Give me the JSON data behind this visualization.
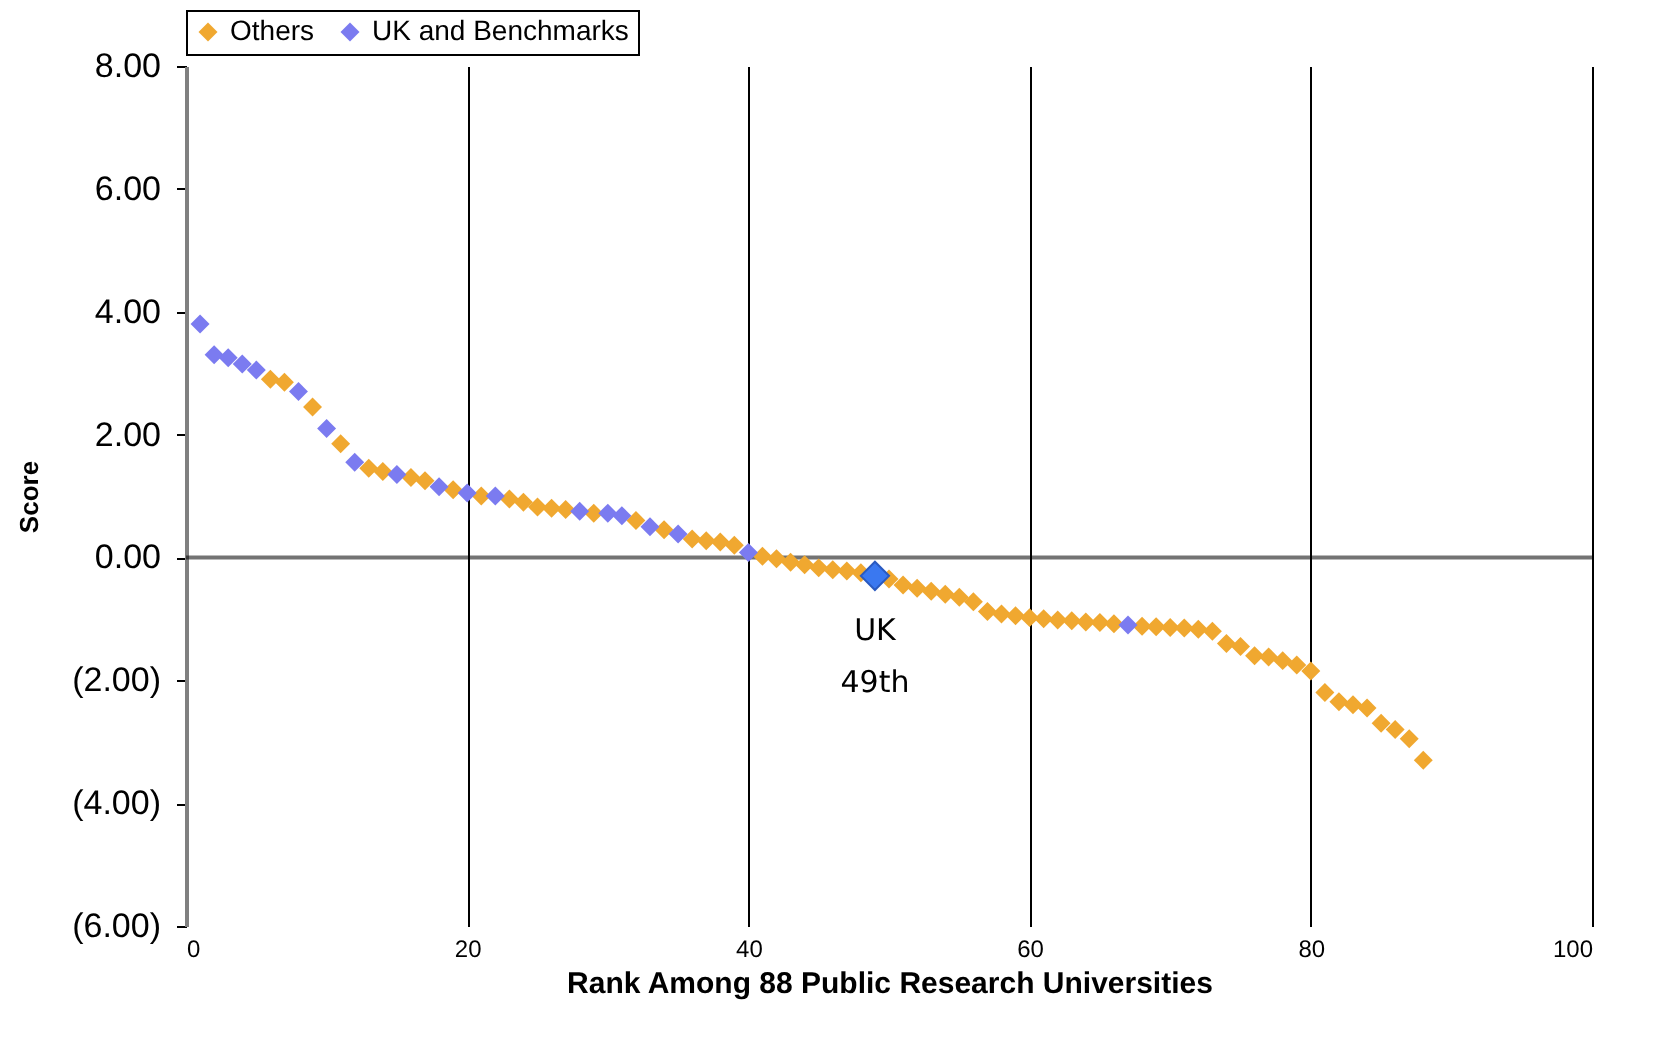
{
  "chart_data": {
    "type": "scatter",
    "xlabel": "Rank Among 88 Public Research Universities",
    "ylabel": "Score",
    "xlim": [
      0,
      100
    ],
    "xticks": [
      0,
      20,
      40,
      60,
      80,
      100
    ],
    "ylim": [
      -6,
      8
    ],
    "yticks": [
      {
        "value": -6,
        "label": "(6.00)"
      },
      {
        "value": -4,
        "label": "(4.00)"
      },
      {
        "value": -2,
        "label": "(2.00)"
      },
      {
        "value": 0,
        "label": "0.00"
      },
      {
        "value": 2,
        "label": "2.00"
      },
      {
        "value": 4,
        "label": "4.00"
      },
      {
        "value": 6,
        "label": "6.00"
      },
      {
        "value": 8,
        "label": "8.00"
      }
    ],
    "grid": "x",
    "legend": "top",
    "marker": "diamond",
    "ref_lines": [
      {
        "axis": "y",
        "value": 0
      }
    ],
    "annotations": [
      {
        "text": "UK\n49th",
        "x": 49,
        "y": -0.3
      }
    ],
    "series": [
      {
        "name": "Others",
        "color": "#f0a830",
        "x": [
          6,
          7,
          9,
          11,
          13,
          14,
          16,
          17,
          19,
          21,
          23,
          24,
          25,
          26,
          27,
          29,
          32,
          34,
          36,
          37,
          38,
          39,
          41,
          42,
          43,
          44,
          45,
          46,
          47,
          48,
          50,
          51,
          52,
          53,
          54,
          55,
          56,
          57,
          58,
          59,
          60,
          61,
          62,
          63,
          64,
          65,
          66,
          68,
          69,
          70,
          71,
          72,
          73,
          74,
          75,
          76,
          77,
          78,
          79,
          80,
          81,
          82,
          83,
          84,
          85,
          86,
          87,
          88
        ],
        "values": [
          2.9,
          2.85,
          2.45,
          1.85,
          1.45,
          1.4,
          1.3,
          1.25,
          1.1,
          1.0,
          0.95,
          0.9,
          0.82,
          0.8,
          0.78,
          0.72,
          0.6,
          0.45,
          0.3,
          0.27,
          0.25,
          0.2,
          0.02,
          -0.02,
          -0.08,
          -0.12,
          -0.17,
          -0.2,
          -0.22,
          -0.25,
          -0.35,
          -0.45,
          -0.5,
          -0.55,
          -0.6,
          -0.65,
          -0.72,
          -0.88,
          -0.92,
          -0.95,
          -0.98,
          -1.0,
          -1.02,
          -1.03,
          -1.05,
          -1.06,
          -1.08,
          -1.12,
          -1.13,
          -1.14,
          -1.15,
          -1.17,
          -1.2,
          -1.4,
          -1.45,
          -1.6,
          -1.62,
          -1.68,
          -1.75,
          -1.85,
          -2.2,
          -2.35,
          -2.4,
          -2.45,
          -2.7,
          -2.8,
          -2.95,
          -3.3
        ]
      },
      {
        "name": "UK and Benchmarks",
        "color": "#7b7bf0",
        "x": [
          1,
          2,
          3,
          4,
          5,
          8,
          10,
          12,
          15,
          18,
          20,
          22,
          28,
          30,
          31,
          33,
          35,
          40,
          67
        ],
        "values": [
          3.8,
          3.3,
          3.25,
          3.15,
          3.05,
          2.7,
          2.1,
          1.55,
          1.35,
          1.15,
          1.05,
          1.0,
          0.75,
          0.72,
          0.68,
          0.5,
          0.38,
          0.08,
          -1.1
        ]
      },
      {
        "color": "#3a78f0",
        "x": [
          49
        ],
        "values": [
          -0.3
        ]
      }
    ]
  }
}
